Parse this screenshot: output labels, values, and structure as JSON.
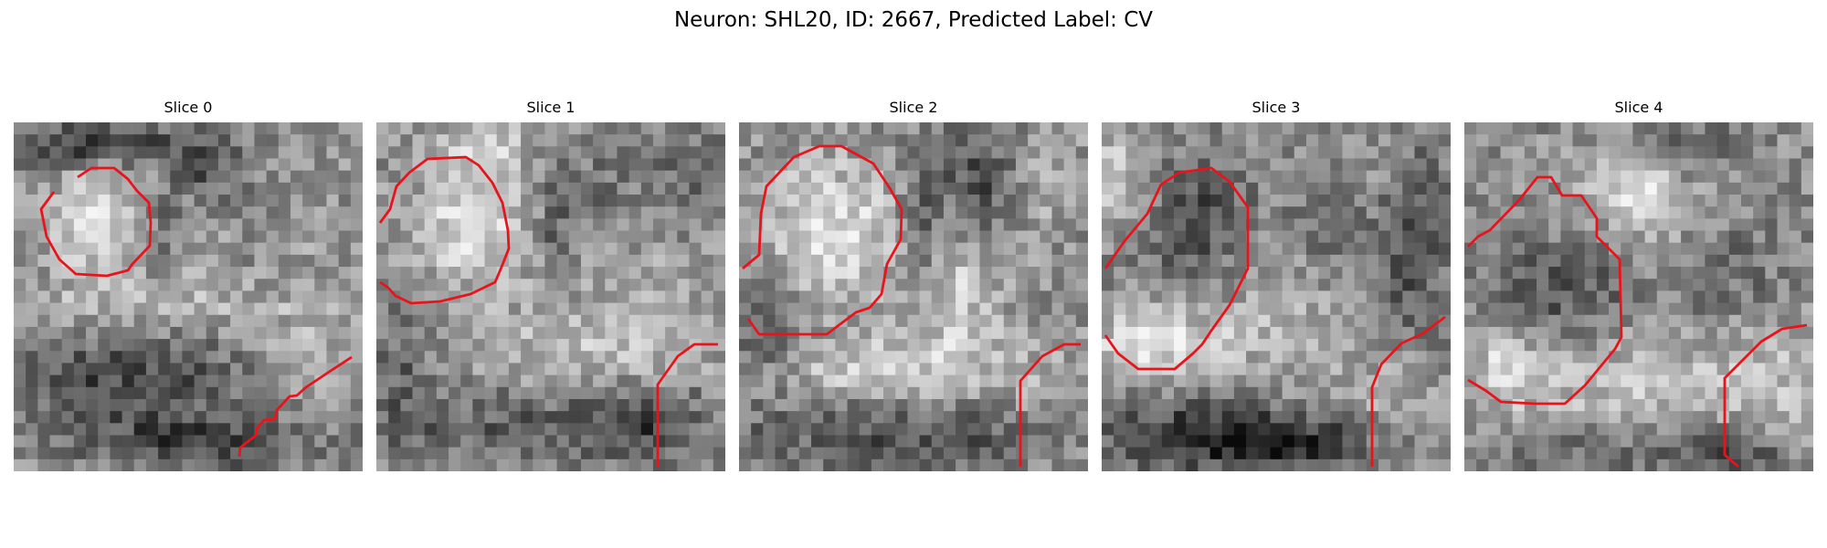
{
  "figure": {
    "title": "Neuron: SHL20, ID: 2667, Predicted Label: CV"
  },
  "contour_color": "#e8141c",
  "panels": [
    {
      "title": "Slice 0"
    },
    {
      "title": "Slice 1"
    },
    {
      "title": "Slice 2"
    },
    {
      "title": "Slice 3"
    },
    {
      "title": "Slice 4"
    }
  ]
}
